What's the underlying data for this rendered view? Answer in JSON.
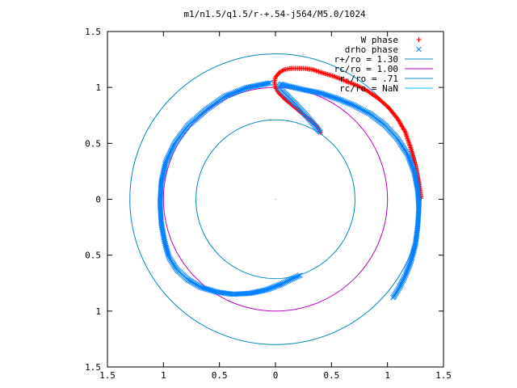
{
  "chart_data": {
    "type": "scatter",
    "title": "m1/n1.5/q1.5/r-+.54-j564/M5.0/1024",
    "xlabel": "",
    "ylabel": "",
    "xlim": [
      -1.5,
      1.5
    ],
    "ylim": [
      -1.5,
      1.5
    ],
    "grid": false,
    "legend_position": "top-right",
    "x_ticks": [
      -1.5,
      -1,
      -0.5,
      0,
      0.5,
      1,
      1.5
    ],
    "x_tick_labels": [
      "1.5",
      "1",
      "0.5",
      "0",
      "0.5",
      "1",
      "1.5"
    ],
    "y_ticks": [
      1.5,
      1,
      0.5,
      0,
      -0.5,
      -1,
      -1.5
    ],
    "y_tick_labels": [
      "1.5",
      "1",
      "0.5",
      "0",
      "0.5",
      "1",
      "1.5"
    ],
    "center_marker": [
      0,
      0
    ],
    "colors": {
      "w_phase": "#ff0000",
      "drho_phase": "#0080ff",
      "r_plus": "#0088bb",
      "rc": "#bb00bb",
      "r_minus": "#0088bb",
      "rc2": "#00c0ff"
    },
    "legend": [
      {
        "label": "W phase",
        "marker": "+",
        "color": "#ff0000"
      },
      {
        "label": "drho phase",
        "marker": "x",
        "color": "#0080ff"
      },
      {
        "label": "r+/ro = 1.30",
        "marker": "line",
        "color": "#0088bb"
      },
      {
        "label": "rc/ro = 1.00",
        "marker": "line",
        "color": "#bb00bb"
      },
      {
        "label": "r-/ro = .71",
        "marker": "line",
        "color": "#0088bb"
      },
      {
        "label": "rc/ro = NaN",
        "marker": "line",
        "color": "#00c0ff"
      }
    ],
    "circles": [
      {
        "name": "r+/ro = 1.30",
        "radius": 1.3,
        "color": "#0088bb"
      },
      {
        "name": "rc/ro = 1.00",
        "radius": 1.0,
        "color": "#bb00bb"
      },
      {
        "name": "r-/ro = .71",
        "radius": 0.71,
        "color": "#0088bb"
      }
    ],
    "series": [
      {
        "name": "W phase",
        "marker": "+",
        "color": "#ff0000",
        "x": [
          0.4,
          0.37,
          0.32,
          0.26,
          0.2,
          0.14,
          0.08,
          0.03,
          0.0,
          -0.01,
          0.0,
          0.03,
          0.08,
          0.14,
          0.2,
          0.26,
          0.33,
          0.42,
          0.52,
          0.62,
          0.72,
          0.82,
          0.92,
          1.01,
          1.09,
          1.16,
          1.21,
          1.25,
          1.28,
          1.3
        ],
        "y": [
          0.6,
          0.65,
          0.7,
          0.75,
          0.8,
          0.85,
          0.9,
          0.95,
          1.0,
          1.05,
          1.09,
          1.13,
          1.16,
          1.17,
          1.17,
          1.17,
          1.16,
          1.13,
          1.1,
          1.06,
          1.02,
          0.97,
          0.9,
          0.82,
          0.72,
          0.6,
          0.45,
          0.3,
          0.15,
          0.01
        ]
      },
      {
        "name": "drho phase",
        "marker": "x",
        "color": "#0080ff",
        "x": [
          0.4,
          0.3,
          0.2,
          0.1,
          0.03,
          0.05,
          0.12,
          0.25,
          0.4,
          0.55,
          0.7,
          0.85,
          0.98,
          1.09,
          1.18,
          1.24,
          1.27,
          1.28,
          1.27,
          1.25,
          1.21,
          1.16,
          1.1,
          1.05,
          -0.05,
          -0.25,
          -0.45,
          -0.62,
          -0.78,
          -0.9,
          -0.98,
          -1.02,
          -1.03,
          -1.02,
          -0.99,
          -0.95,
          -0.88,
          -0.78,
          -0.66,
          -0.52,
          -0.38,
          -0.22,
          -0.08,
          0.05,
          0.15,
          0.22
        ],
        "y": [
          0.6,
          0.72,
          0.83,
          0.93,
          1.0,
          1.03,
          1.01,
          0.98,
          0.95,
          0.9,
          0.84,
          0.76,
          0.66,
          0.54,
          0.4,
          0.24,
          0.08,
          -0.08,
          -0.24,
          -0.4,
          -0.55,
          -0.68,
          -0.8,
          -0.88,
          1.04,
          1.0,
          0.92,
          0.8,
          0.66,
          0.5,
          0.33,
          0.15,
          -0.03,
          -0.21,
          -0.38,
          -0.52,
          -0.63,
          -0.72,
          -0.79,
          -0.83,
          -0.85,
          -0.84,
          -0.81,
          -0.76,
          -0.71,
          -0.68
        ]
      }
    ]
  }
}
